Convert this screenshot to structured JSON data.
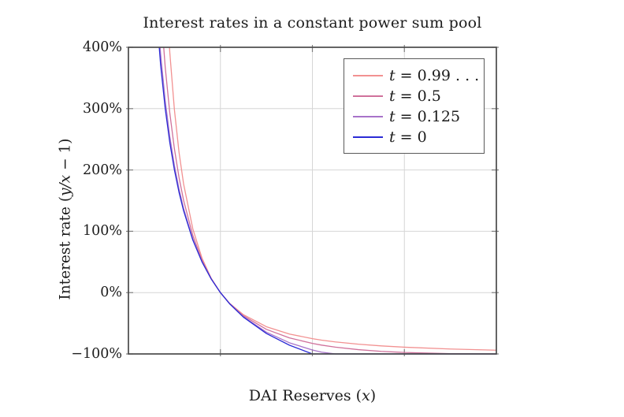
{
  "chart": {
    "title": "Interest rates in a constant power sum pool",
    "ylabel": {
      "pre": "Interest rate (",
      "math": "y/x",
      "post": " − 1)"
    },
    "xlabel": {
      "pre": "DAI Reserves (",
      "math": "x",
      "post": ")"
    },
    "y_ticks": [
      "400%",
      "300%",
      "200%",
      "100%",
      "0%",
      "−100%"
    ],
    "legend": [
      {
        "var": "t",
        "rest": " = 0.99 . . ."
      },
      {
        "var": "t",
        "rest": " = 0.5"
      },
      {
        "var": "t",
        "rest": " = 0.125"
      },
      {
        "var": "t",
        "rest": " = 0"
      }
    ],
    "colors": {
      "axis_box": "#4a4a4a",
      "gridline": "#d6d6d6",
      "tick": "#808080",
      "legend_border": "#595959",
      "text": "#1c1c1c"
    }
  },
  "chart_data": {
    "type": "line",
    "title": "Interest rates in a constant power sum pool",
    "xlabel": "DAI Reserves (x)",
    "ylabel": "Interest rate (y/x − 1)",
    "x_tick_labels_shown": false,
    "x_axis_note": "x axis has unlabeled gridlines at 1/4, 1/2, 3/4 of its span; x given here in multiples of the balanced reserve (all curves cross 0% at x = 1)",
    "xlim": [
      0,
      4
    ],
    "ylim_percent": [
      -100,
      400
    ],
    "y_gridlines_percent": [
      0,
      100,
      200,
      300
    ],
    "y_tick_percent": [
      -100,
      0,
      100,
      200,
      300,
      400
    ],
    "x_gridlines": [
      1,
      2,
      3
    ],
    "grid": true,
    "legend_position": "top-right",
    "x": [
      0.3,
      0.35,
      0.4,
      0.45,
      0.5,
      0.55,
      0.6,
      0.7,
      0.8,
      0.9,
      1.0,
      1.1,
      1.25,
      1.5,
      1.75,
      2.0,
      2.1,
      2.25,
      2.5,
      2.75,
      3.0,
      3.5,
      4.0
    ],
    "series": [
      {
        "name": "t = 0.99 . . .",
        "t_value": "0.99...",
        "color": "#f29191",
        "rate_percent": [
          995,
          708,
          520,
          391,
          298,
          229,
          177,
          104,
          56.2,
          23.4,
          0,
          -17.4,
          -36.0,
          -55.6,
          -67.5,
          -75.1,
          -77.5,
          -80.4,
          -84.1,
          -86.9,
          -89.0,
          -92.0,
          -93.9
        ]
      },
      {
        "name": "t = 0.5",
        "t_value": "0.5",
        "color": "#d0719b",
        "rate_percent": [
          603,
          467,
          367.5,
          292.6,
          234.3,
          187.9,
          150.3,
          93.3,
          52.8,
          22.8,
          0,
          -17.7,
          -37.8,
          -59.9,
          -73.8,
          -82.8,
          -85.6,
          -88.9,
          -93.0,
          -95.8,
          -97.6,
          -99.5,
          -100
        ]
      },
      {
        "name": "t = 0.125",
        "t_value": "0.125",
        "color": "#a873c9",
        "rate_percent": [
          491,
          389,
          313,
          254,
          207,
          169,
          137,
          87.3,
          50.6,
          22.4,
          0,
          -18.1,
          -39.4,
          -64.6,
          -81.8,
          -93.6,
          -97.1,
          -100,
          -100,
          -100,
          -100,
          -100,
          -100
        ]
      },
      {
        "name": "t = 0",
        "t_value": "0",
        "color": "#2b2bd5",
        "rate_percent": [
          466.7,
          371.4,
          300,
          244.4,
          200,
          163.6,
          133.3,
          85.7,
          50,
          22.2,
          0,
          -18.2,
          -40,
          -66.7,
          -85.7,
          -100,
          -100,
          -100,
          -100,
          -100,
          -100,
          -100,
          -100
        ]
      }
    ]
  }
}
